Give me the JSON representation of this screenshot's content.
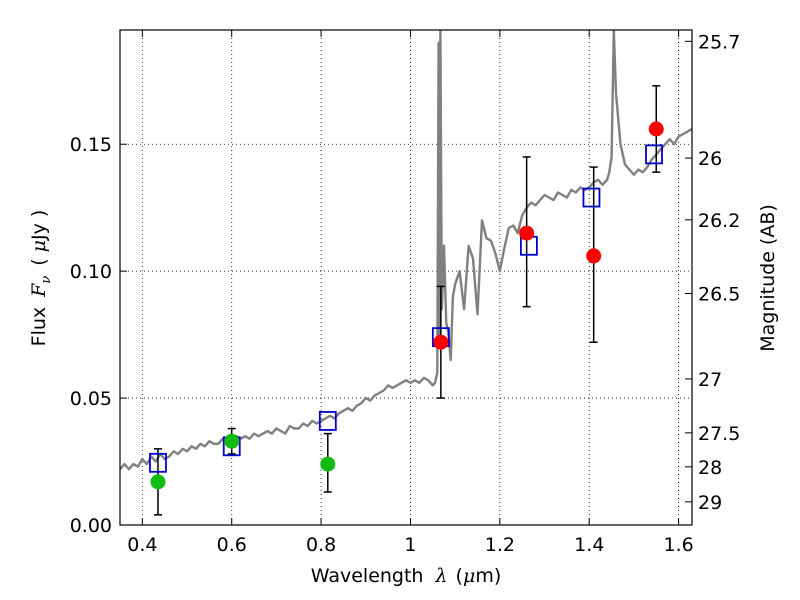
{
  "chart_data": {
    "type": "scatter",
    "title": "",
    "xlabel": {
      "prefix": "Wavelength",
      "symbol": "λ",
      "unit_open": "(",
      "unit_mu": "μ",
      "unit_rest": "m)"
    },
    "ylabel": {
      "prefix": "Flux",
      "symbol": "F",
      "subscript": "ν",
      "unit_open": "(",
      "unit_mu": "μ",
      "unit_rest": "Jy )"
    },
    "y2label": "Magnitude (AB)",
    "xlim": [
      0.35,
      1.63
    ],
    "ylim": [
      0.0,
      0.195
    ],
    "grid": true,
    "x_ticks": [
      {
        "v": 0.4,
        "label": "0.4"
      },
      {
        "v": 0.6,
        "label": "0.6"
      },
      {
        "v": 0.8,
        "label": "0.8"
      },
      {
        "v": 1.0,
        "label": "1"
      },
      {
        "v": 1.2,
        "label": "1.2"
      },
      {
        "v": 1.4,
        "label": "1.4"
      },
      {
        "v": 1.6,
        "label": "1.6"
      }
    ],
    "y_ticks": [
      {
        "v": 0.0,
        "label": "0.00"
      },
      {
        "v": 0.05,
        "label": "0.05"
      },
      {
        "v": 0.1,
        "label": "0.10"
      },
      {
        "v": 0.15,
        "label": "0.15"
      }
    ],
    "y2_ticks": [
      {
        "mag": 25.7,
        "label": "25.7"
      },
      {
        "mag": 26,
        "label": "26"
      },
      {
        "mag": 26.2,
        "label": "26.2"
      },
      {
        "mag": 26.5,
        "label": "26.5"
      },
      {
        "mag": 27,
        "label": "27"
      },
      {
        "mag": 27.5,
        "label": "27.5"
      },
      {
        "mag": 28,
        "label": "28"
      },
      {
        "mag": 29,
        "label": "29"
      }
    ],
    "model_spectrum": {
      "color": "#808080",
      "x": [
        0.35,
        0.36,
        0.37,
        0.38,
        0.39,
        0.4,
        0.41,
        0.42,
        0.43,
        0.44,
        0.45,
        0.46,
        0.47,
        0.48,
        0.49,
        0.5,
        0.51,
        0.52,
        0.53,
        0.54,
        0.55,
        0.56,
        0.57,
        0.58,
        0.59,
        0.6,
        0.61,
        0.62,
        0.63,
        0.64,
        0.65,
        0.66,
        0.67,
        0.68,
        0.69,
        0.7,
        0.71,
        0.72,
        0.73,
        0.74,
        0.75,
        0.76,
        0.77,
        0.78,
        0.79,
        0.8,
        0.81,
        0.82,
        0.83,
        0.84,
        0.85,
        0.86,
        0.87,
        0.88,
        0.89,
        0.9,
        0.91,
        0.92,
        0.93,
        0.94,
        0.95,
        0.96,
        0.97,
        0.98,
        0.99,
        1.0,
        1.01,
        1.02,
        1.03,
        1.04,
        1.05,
        1.055,
        1.06,
        1.063,
        1.065,
        1.067,
        1.07,
        1.075,
        1.08,
        1.085,
        1.09,
        1.095,
        1.1,
        1.11,
        1.12,
        1.13,
        1.14,
        1.15,
        1.16,
        1.17,
        1.18,
        1.19,
        1.2,
        1.21,
        1.22,
        1.23,
        1.24,
        1.25,
        1.26,
        1.27,
        1.28,
        1.29,
        1.3,
        1.31,
        1.32,
        1.33,
        1.34,
        1.35,
        1.36,
        1.37,
        1.38,
        1.39,
        1.4,
        1.41,
        1.42,
        1.43,
        1.44,
        1.445,
        1.45,
        1.455,
        1.46,
        1.47,
        1.48,
        1.49,
        1.5,
        1.51,
        1.52,
        1.53,
        1.54,
        1.55,
        1.56,
        1.57,
        1.58,
        1.59,
        1.6,
        1.61,
        1.62,
        1.63
      ],
      "y": [
        0.022,
        0.024,
        0.022,
        0.024,
        0.023,
        0.026,
        0.024,
        0.027,
        0.025,
        0.028,
        0.026,
        0.027,
        0.029,
        0.028,
        0.03,
        0.029,
        0.031,
        0.03,
        0.032,
        0.031,
        0.033,
        0.032,
        0.032,
        0.034,
        0.033,
        0.032,
        0.035,
        0.034,
        0.035,
        0.034,
        0.036,
        0.035,
        0.036,
        0.037,
        0.036,
        0.038,
        0.037,
        0.036,
        0.039,
        0.038,
        0.038,
        0.04,
        0.039,
        0.041,
        0.04,
        0.041,
        0.042,
        0.043,
        0.042,
        0.044,
        0.045,
        0.046,
        0.045,
        0.047,
        0.048,
        0.05,
        0.049,
        0.051,
        0.052,
        0.053,
        0.055,
        0.054,
        0.055,
        0.056,
        0.057,
        0.056,
        0.057,
        0.056,
        0.058,
        0.057,
        0.055,
        0.056,
        0.06,
        0.19,
        0.07,
        0.195,
        0.085,
        0.11,
        0.08,
        0.075,
        0.065,
        0.09,
        0.095,
        0.1,
        0.085,
        0.11,
        0.105,
        0.083,
        0.12,
        0.113,
        0.112,
        0.107,
        0.1,
        0.109,
        0.117,
        0.118,
        0.115,
        0.122,
        0.125,
        0.127,
        0.126,
        0.128,
        0.13,
        0.129,
        0.128,
        0.131,
        0.13,
        0.129,
        0.132,
        0.131,
        0.133,
        0.132,
        0.133,
        0.135,
        0.136,
        0.134,
        0.136,
        0.139,
        0.145,
        0.195,
        0.17,
        0.15,
        0.142,
        0.14,
        0.138,
        0.14,
        0.139,
        0.141,
        0.144,
        0.146,
        0.148,
        0.15,
        0.152,
        0.15,
        0.153,
        0.154,
        0.155,
        0.156
      ]
    },
    "series": [
      {
        "marker": "square",
        "color": "#0000cc",
        "x": [
          0.435,
          0.6,
          0.815,
          1.068,
          1.265,
          1.405,
          1.545
        ],
        "y": [
          0.0245,
          0.031,
          0.041,
          0.074,
          0.11,
          0.129,
          0.146
        ]
      },
      {
        "marker": "circle",
        "color": "#11bb11",
        "x": [
          0.435,
          0.6,
          0.815
        ],
        "y": [
          0.017,
          0.033,
          0.024
        ],
        "yerr_low": [
          0.004,
          0.028,
          0.013
        ],
        "yerr_high": [
          0.03,
          0.038,
          0.036
        ]
      },
      {
        "marker": "circle",
        "color": "#ff0000",
        "x": [
          1.068,
          1.26,
          1.41,
          1.55
        ],
        "y": [
          0.072,
          0.115,
          0.106,
          0.156
        ],
        "yerr_low": [
          0.05,
          0.086,
          0.072,
          0.139
        ],
        "yerr_high": [
          0.094,
          0.145,
          0.141,
          0.173
        ]
      }
    ]
  }
}
